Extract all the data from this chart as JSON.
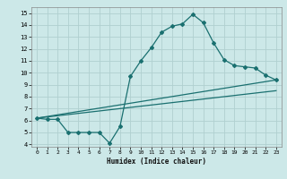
{
  "title": "",
  "xlabel": "Humidex (Indice chaleur)",
  "ylabel": "",
  "xlim": [
    -0.5,
    23.5
  ],
  "ylim": [
    3.8,
    15.5
  ],
  "xticks": [
    0,
    1,
    2,
    3,
    4,
    5,
    6,
    7,
    8,
    9,
    10,
    11,
    12,
    13,
    14,
    15,
    16,
    17,
    18,
    19,
    20,
    21,
    22,
    23
  ],
  "yticks": [
    4,
    5,
    6,
    7,
    8,
    9,
    10,
    11,
    12,
    13,
    14,
    15
  ],
  "bg_color": "#cce8e8",
  "grid_color": "#b0d0d0",
  "line_color": "#1a7070",
  "line1_x": [
    0,
    1,
    2,
    3,
    4,
    5,
    6,
    7,
    8,
    9,
    10,
    11,
    12,
    13,
    14,
    15,
    16,
    17,
    18,
    19,
    20,
    21,
    22,
    23
  ],
  "line1_y": [
    6.2,
    6.1,
    6.1,
    5.0,
    5.0,
    5.0,
    5.0,
    4.1,
    5.5,
    9.7,
    11.0,
    12.1,
    13.4,
    13.9,
    14.1,
    14.9,
    14.2,
    12.5,
    11.1,
    10.6,
    10.5,
    10.4,
    9.8,
    9.4
  ],
  "line2_x": [
    0,
    23
  ],
  "line2_y": [
    6.2,
    9.4
  ],
  "line3_x": [
    0,
    23
  ],
  "line3_y": [
    6.2,
    8.5
  ]
}
